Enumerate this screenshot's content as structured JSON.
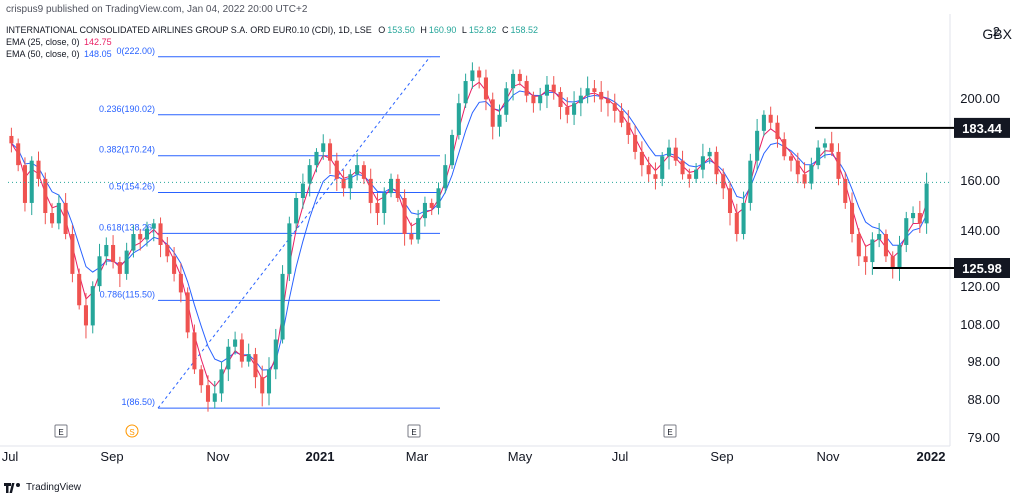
{
  "header": {
    "attribution": "crispus9 published on TradingView.com, Jan 04, 2022 20:00 UTC+2",
    "symbol": "INTERNATIONAL CONSOLIDATED AIRLINES GROUP S.A. ORD EUR0.10 (CDI), 1D, LSE",
    "ohlc": {
      "o_label": "O",
      "o": "153.50",
      "h_label": "H",
      "h": "160.90",
      "l_label": "L",
      "l": "152.82",
      "c_label": "C",
      "c": "158.52"
    },
    "ema25_label": "EMA (25, close, 0)",
    "ema25_value": "142.75",
    "ema50_label": "EMA (50, close, 0)",
    "ema50_value": "148.05",
    "currency": "GBX"
  },
  "footer": {
    "brand": "TradingView"
  },
  "colors": {
    "up": "#26a69a",
    "down": "#ef5350",
    "ema25": "#e91e63",
    "ema50": "#2962ff",
    "fib": "#2962ff",
    "label_bg": "#131722",
    "label_text": "#ffffff",
    "axis_text": "#131722"
  },
  "chart_data": {
    "type": "candlestick",
    "scale": "log",
    "ylim": [
      79,
      245
    ],
    "y_ticks": [
      "79.00",
      "88.00",
      "98.00",
      "108.00",
      "120.00",
      "140.00",
      "160.00",
      "200.00",
      "2"
    ],
    "x_ticks": [
      "Jul",
      "Sep",
      "Nov",
      "2021",
      "Mar",
      "May",
      "Jul",
      "Sep",
      "Nov",
      "2022"
    ],
    "x_bold_ticks": [
      "2021",
      "2022"
    ],
    "fib_levels": [
      {
        "label": "0(222.00)",
        "value": 222.0
      },
      {
        "label": "0.236(190.02)",
        "value": 190.02
      },
      {
        "label": "0.382(170.24)",
        "value": 170.24
      },
      {
        "label": "0.5(154.26)",
        "value": 154.26
      },
      {
        "label": "0.618(138.26)",
        "value": 138.26
      },
      {
        "label": "0.786(115.50)",
        "value": 115.5
      },
      {
        "label": "1(86.50)",
        "value": 86.5
      }
    ],
    "horizontal_lines": [
      {
        "label": "183.44",
        "value": 183.44
      },
      {
        "label": "125.98",
        "value": 125.98
      }
    ],
    "last_close": 158.52,
    "event_markers": [
      {
        "label": "E"
      },
      {
        "label": "S"
      },
      {
        "label": "E"
      },
      {
        "label": "E"
      }
    ],
    "closes": [
      176,
      166,
      150,
      168,
      160,
      146,
      142,
      150,
      138,
      124,
      114,
      108,
      120,
      130,
      134,
      128,
      124,
      132,
      138,
      136,
      140,
      142,
      134,
      130,
      124,
      118,
      106,
      96,
      92,
      88,
      90,
      96,
      102,
      104,
      98,
      100,
      94,
      90,
      96,
      104,
      124,
      142,
      152,
      158,
      166,
      172,
      176,
      168,
      160,
      156,
      162,
      166,
      160,
      150,
      146,
      154,
      160,
      152,
      138,
      136,
      144,
      150,
      148,
      156,
      166,
      180,
      196,
      208,
      214,
      210,
      198,
      184,
      190,
      204,
      212,
      208,
      200,
      196,
      200,
      206,
      202,
      194,
      190,
      196,
      200,
      204,
      202,
      198,
      196,
      192,
      186,
      180,
      172,
      166,
      162,
      160,
      170,
      174,
      168,
      162,
      160,
      164,
      170,
      172,
      162,
      156,
      146,
      138,
      150,
      168,
      182,
      190,
      186,
      178,
      170,
      168,
      162,
      158,
      166,
      174,
      176,
      172,
      160,
      150,
      138,
      130,
      128,
      136,
      138,
      130,
      126,
      134,
      144,
      146,
      142,
      158
    ]
  }
}
